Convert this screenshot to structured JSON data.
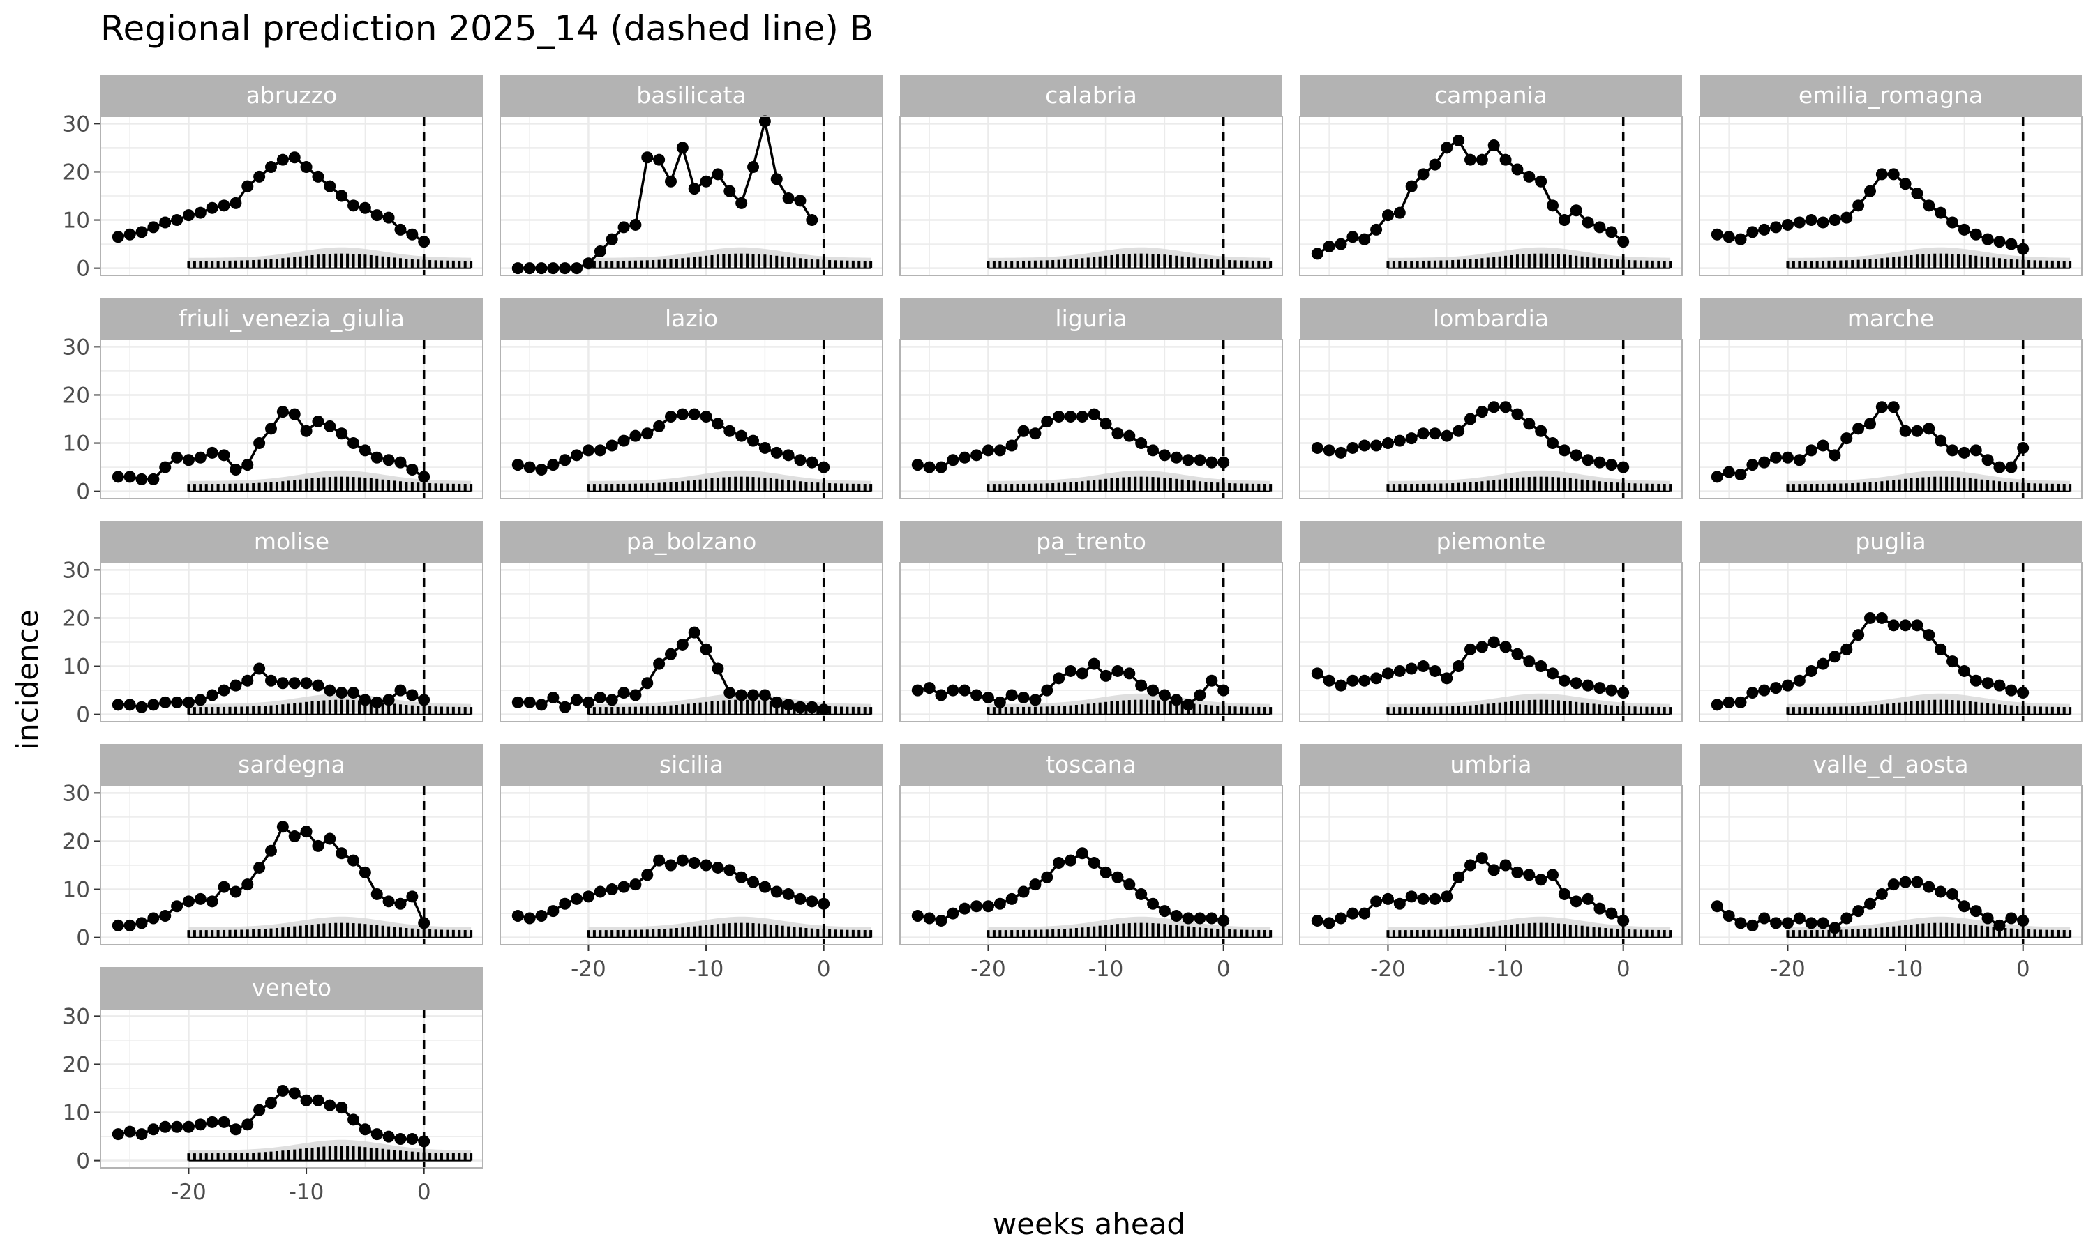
{
  "chart_data": {
    "type": "line",
    "title": "Regional prediction 2025_14 (dashed line) B",
    "xlabel": "weeks ahead",
    "ylabel": "incidence",
    "xlim": [
      -27.5,
      5
    ],
    "ylim": [
      -1.5,
      31.5
    ],
    "x_ticks": [
      -20,
      -10,
      0
    ],
    "x_tick_labels": [
      "-20",
      "-10",
      "0"
    ],
    "y_ticks": [
      0,
      10,
      20,
      30
    ],
    "y_tick_labels": [
      "0",
      "10",
      "20",
      "30"
    ],
    "grid": true,
    "layout": "facet_wrap, 5 columns",
    "vline_x": 0,
    "x": [
      -26,
      -25,
      -24,
      -23,
      -22,
      -21,
      -20,
      -19,
      -18,
      -17,
      -16,
      -15,
      -14,
      -13,
      -12,
      -11,
      -10,
      -9,
      -8,
      -7,
      -6,
      -5,
      -4,
      -3,
      -2,
      -1,
      0
    ],
    "forecast": {
      "x_start": -20,
      "x_end": 4,
      "band_centre": -7,
      "band_width": 5,
      "band_peak": 3.2,
      "band_base": 1.6,
      "band_tail": 1.7
    },
    "colors": {
      "observed": "#000000",
      "band": "#d9d9d9",
      "forecast": "#000000",
      "strip": "#b3b3b3",
      "strip_text": "#ffffff",
      "grid": "#ebebeb",
      "panel_border": "#b3b3b3"
    },
    "panels": [
      {
        "name": "abruzzo",
        "values": [
          6.5,
          7,
          7.5,
          8.5,
          9.5,
          10,
          11,
          11.5,
          12.5,
          13,
          13.5,
          17,
          19,
          21,
          22.5,
          23,
          21,
          19,
          17,
          15,
          13,
          12.5,
          11,
          10.5,
          8,
          7,
          5.5
        ]
      },
      {
        "name": "basilicata",
        "values": [
          0,
          0,
          0,
          0,
          0,
          0,
          1,
          3.5,
          6,
          8.5,
          9,
          23,
          22.5,
          18,
          25,
          16.5,
          18,
          19.5,
          16,
          13.5,
          21,
          30.5,
          18.5,
          14.5,
          14,
          10,
          null
        ]
      },
      {
        "name": "calabria",
        "values": []
      },
      {
        "name": "campania",
        "values": [
          3,
          4.5,
          5,
          6.5,
          6,
          8,
          11,
          11.5,
          17,
          19.5,
          21.5,
          25,
          26.5,
          22.5,
          22.5,
          25.5,
          22.5,
          20.5,
          19,
          18,
          13,
          10,
          12,
          9.5,
          8.5,
          7.5,
          5.5
        ]
      },
      {
        "name": "emilia_romagna",
        "values": [
          7,
          6.5,
          6,
          7.5,
          8,
          8.5,
          9,
          9.5,
          10,
          9.5,
          10,
          10.5,
          13,
          16,
          19.5,
          19.5,
          17.5,
          15.5,
          13,
          11.5,
          9.5,
          8,
          7,
          6,
          5.5,
          5,
          4
        ]
      },
      {
        "name": "friuli_venezia_giulia",
        "values": [
          3,
          3,
          2.5,
          2.5,
          5,
          7,
          6.5,
          7,
          8,
          7.5,
          4.5,
          5.5,
          10,
          13,
          16.5,
          16,
          12.5,
          14.5,
          13.5,
          12,
          10,
          8.5,
          7,
          6.5,
          6,
          4.5,
          3
        ]
      },
      {
        "name": "lazio",
        "values": [
          5.5,
          5,
          4.5,
          5.5,
          6.5,
          7.5,
          8.5,
          8.5,
          9.5,
          10.5,
          11.5,
          12,
          13.5,
          15.5,
          16,
          16,
          15.5,
          14,
          12.5,
          11.5,
          10.5,
          9,
          8,
          7.5,
          6.5,
          6,
          5
        ]
      },
      {
        "name": "liguria",
        "values": [
          5.5,
          5,
          5,
          6.5,
          7,
          7.5,
          8.5,
          8.5,
          9.5,
          12.5,
          12,
          14.5,
          15.5,
          15.5,
          15.5,
          16,
          14,
          12,
          11.5,
          10,
          8.5,
          7.5,
          7,
          6.5,
          6.5,
          6,
          6
        ]
      },
      {
        "name": "lombardia",
        "values": [
          9,
          8.5,
          8,
          9,
          9.5,
          9.5,
          10,
          10.5,
          11,
          12,
          12,
          11.5,
          12.5,
          15,
          16.5,
          17.5,
          17.5,
          16,
          14,
          12.5,
          10,
          8.5,
          7.5,
          6.5,
          6,
          5.5,
          5
        ]
      },
      {
        "name": "marche",
        "values": [
          3,
          4,
          3.5,
          5.5,
          6,
          7,
          7,
          6.5,
          8.5,
          9.5,
          7.5,
          11,
          13,
          14,
          17.5,
          17.5,
          12.5,
          12.5,
          13,
          10.5,
          8.5,
          8,
          8.5,
          6.5,
          5,
          5,
          9
        ]
      },
      {
        "name": "molise",
        "values": [
          2,
          2,
          1.5,
          2,
          2.5,
          2.5,
          2.5,
          3,
          4,
          5,
          6,
          7,
          9.5,
          7,
          6.5,
          6.5,
          6.5,
          6,
          5,
          4.5,
          4.5,
          3,
          2.5,
          3,
          5,
          4,
          3
        ]
      },
      {
        "name": "pa_bolzano",
        "values": [
          2.5,
          2.5,
          2,
          3.5,
          1.5,
          3,
          2.5,
          3.5,
          3,
          4.5,
          4,
          6.5,
          10.5,
          12.5,
          14.5,
          17,
          13.5,
          9.5,
          4.5,
          4,
          4,
          4,
          2.5,
          2,
          1.5,
          1.5,
          1
        ]
      },
      {
        "name": "pa_trento",
        "values": [
          5,
          5.5,
          4,
          5,
          5,
          4,
          3.5,
          2.5,
          4,
          3.5,
          3,
          5,
          7.5,
          9,
          8.5,
          10.5,
          8,
          9,
          8.5,
          6,
          5,
          4,
          3,
          2,
          4,
          7,
          5
        ]
      },
      {
        "name": "piemonte",
        "values": [
          8.5,
          7,
          6,
          7,
          7,
          7.5,
          8.5,
          9,
          9.5,
          10,
          9,
          7.5,
          10,
          13.5,
          14,
          15,
          14,
          12.5,
          11,
          10,
          8.5,
          7,
          6.5,
          6,
          5.5,
          5,
          4.5
        ]
      },
      {
        "name": "puglia",
        "values": [
          2,
          2.5,
          2.5,
          4.5,
          5,
          5.5,
          6,
          7,
          9,
          10.5,
          12,
          13.5,
          16.5,
          20,
          20,
          18.5,
          18.5,
          18.5,
          16.5,
          13.5,
          11,
          9,
          7,
          6.5,
          6,
          5,
          4.5
        ]
      },
      {
        "name": "sardegna",
        "values": [
          2.5,
          2.5,
          3,
          4,
          4.5,
          6.5,
          7.5,
          8,
          7.5,
          10.5,
          9.5,
          11,
          14.5,
          18,
          23,
          21,
          22,
          19,
          20.5,
          17.5,
          16,
          13.5,
          9,
          7.5,
          7,
          8.5,
          3
        ]
      },
      {
        "name": "sicilia",
        "values": [
          4.5,
          4,
          4.5,
          5.5,
          7,
          8,
          8.5,
          9.5,
          10,
          10.5,
          11,
          13,
          16,
          15,
          16,
          15.5,
          15,
          14.5,
          14,
          12.5,
          11.5,
          10.5,
          9.5,
          9,
          8,
          7.5,
          7
        ]
      },
      {
        "name": "toscana",
        "values": [
          4.5,
          4,
          3.5,
          5,
          6,
          6.5,
          6.5,
          7,
          8,
          9.5,
          11,
          12.5,
          15.5,
          16,
          17.5,
          15.5,
          13.5,
          12.5,
          11,
          9,
          7,
          5.5,
          4.5,
          4,
          4,
          4,
          3.5
        ]
      },
      {
        "name": "umbria",
        "values": [
          3.5,
          3,
          4,
          5,
          5,
          7.5,
          8,
          7,
          8.5,
          8,
          8,
          8.5,
          12.5,
          15,
          16.5,
          14,
          15,
          13.5,
          13,
          12,
          13,
          9,
          7.5,
          8,
          6,
          5,
          3.5
        ]
      },
      {
        "name": "valle_d_aosta",
        "values": [
          6.5,
          4.5,
          3,
          2.5,
          4,
          3,
          3,
          4,
          3,
          3,
          2,
          4,
          5.5,
          7,
          9,
          11,
          11.5,
          11.5,
          10.5,
          9.5,
          9,
          6.5,
          5.5,
          4,
          2.5,
          4,
          3.5
        ]
      },
      {
        "name": "veneto",
        "values": [
          5.5,
          6,
          5.5,
          6.5,
          7,
          7,
          7,
          7.5,
          8,
          8,
          6.5,
          7.5,
          10.5,
          12,
          14.5,
          14,
          12.5,
          12.5,
          11.5,
          11,
          8.5,
          6.5,
          5.5,
          5,
          4.5,
          4.5,
          4
        ]
      }
    ]
  }
}
